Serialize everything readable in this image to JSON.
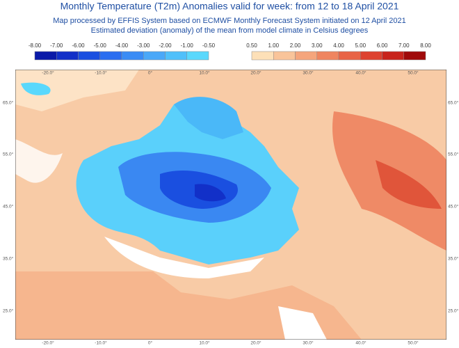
{
  "header": {
    "title": "Monthly Temperature (T2m) Anomalies valid for week: from 12 to 18 April 2021",
    "subtitle": "Map processed by EFFIS System based on ECMWF Monthly Forecast System initiated on 12 April 2021",
    "description": "Estimated deviation (anomaly) of the mean from model climate in Celsius degrees"
  },
  "legend": {
    "cold": {
      "labels": [
        "-8.00",
        "-7.00",
        "-6.00",
        "-5.00",
        "-4.00",
        "-3.00",
        "-2.00",
        "-1.00",
        "-0.50"
      ],
      "colors": [
        "#0a1aa8",
        "#1230c8",
        "#1a4fe0",
        "#2a6ef0",
        "#3a8cf5",
        "#4aa8f8",
        "#50c0fa",
        "#5ad8fc"
      ]
    },
    "warm": {
      "labels": [
        "0.50",
        "1.00",
        "2.00",
        "3.00",
        "4.00",
        "5.00",
        "6.00",
        "7.00",
        "8.00"
      ],
      "colors": [
        "#fde0b8",
        "#f9c49a",
        "#f5a57c",
        "#ef8560",
        "#e86446",
        "#dd4230",
        "#c8241c",
        "#a00a0a"
      ]
    }
  },
  "map": {
    "longitudes": [
      "-20.0°",
      "-10.0°",
      "0°",
      "10.0°",
      "20.0°",
      "30.0°",
      "40.0°",
      "50.0°"
    ],
    "latitudes": [
      "65.0°",
      "55.0°",
      "45.0°",
      "35.0°",
      "25.0°"
    ]
  }
}
